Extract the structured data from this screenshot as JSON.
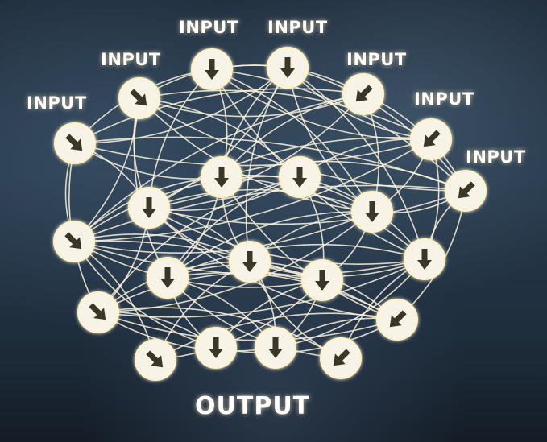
{
  "input_label": "INPUT",
  "output_label": "OUTPUT",
  "colors": {
    "node_fill": "#f7f3e6",
    "arrow": "#3b3628",
    "edge": "#fbf5df",
    "glow": "#fff3c4"
  },
  "icons": [
    "down-arrow-icon",
    "down-left-arrow-icon",
    "down-right-arrow-icon"
  ]
}
